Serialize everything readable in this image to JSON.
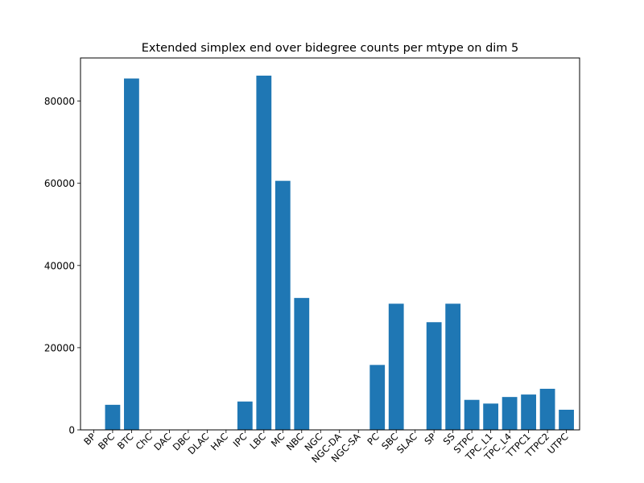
{
  "chart_data": {
    "type": "bar",
    "title": "Extended simplex end over bidegree counts per mtype on dim 5",
    "xlabel": "",
    "ylabel": "",
    "categories": [
      "BP",
      "BPC",
      "BTC",
      "ChC",
      "DAC",
      "DBC",
      "DLAC",
      "HAC",
      "IPC",
      "LBC",
      "MC",
      "NBC",
      "NGC",
      "NGC-DA",
      "NGC-SA",
      "PC",
      "SBC",
      "SLAC",
      "SP",
      "SS",
      "STPC",
      "TPC_L1",
      "TPC_L4",
      "TTPC1",
      "TTPC2",
      "UTPC"
    ],
    "values": [
      0,
      6100,
      85500,
      0,
      0,
      0,
      0,
      0,
      6900,
      86200,
      60600,
      32100,
      0,
      0,
      0,
      15800,
      30700,
      0,
      26200,
      30700,
      7300,
      6400,
      8000,
      8600,
      10000,
      4900
    ],
    "yticks": [
      0,
      20000,
      40000,
      60000,
      80000
    ],
    "ylim": [
      0,
      90500
    ],
    "bar_color": "#1f77b4",
    "grid": false,
    "legend": "none"
  }
}
